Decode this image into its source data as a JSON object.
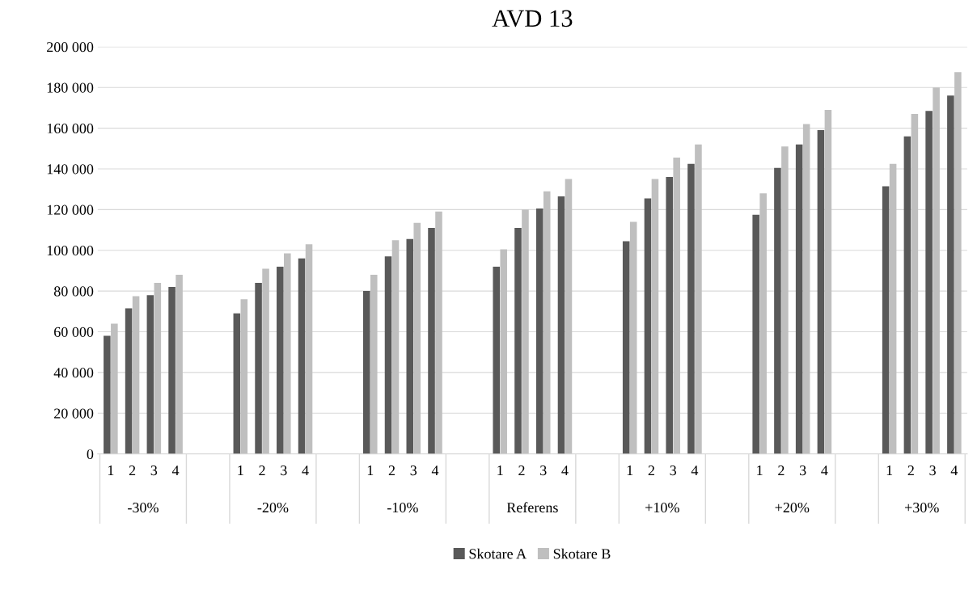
{
  "chart_data": {
    "type": "bar",
    "title": "AVD 13",
    "categories": [
      "1",
      "2",
      "3",
      "4",
      null,
      null,
      "1",
      "2",
      "3",
      "4",
      null,
      null,
      "1",
      "2",
      "3",
      "4",
      null,
      null,
      "1",
      "2",
      "3",
      "4",
      null,
      null,
      "1",
      "2",
      "3",
      "4",
      null,
      null,
      "1",
      "2",
      "3",
      "4",
      null,
      null,
      "1",
      "2",
      "3",
      "4"
    ],
    "series": [
      {
        "name": "Skotare A",
        "color": "#595959",
        "values": [
          58000,
          71500,
          78000,
          82000,
          null,
          null,
          69000,
          84000,
          92000,
          96000,
          null,
          null,
          80000,
          97000,
          105500,
          111000,
          null,
          null,
          92000,
          111000,
          120500,
          126500,
          null,
          null,
          104500,
          125500,
          136000,
          142500,
          null,
          null,
          117500,
          140500,
          152000,
          159000,
          null,
          null,
          131500,
          156000,
          168500,
          176000
        ]
      },
      {
        "name": "Skotare B",
        "color": "#bfbfbf",
        "values": [
          64000,
          77500,
          84000,
          88000,
          null,
          null,
          76000,
          91000,
          98500,
          103000,
          null,
          null,
          88000,
          105000,
          113500,
          119000,
          null,
          null,
          100500,
          120000,
          129000,
          135000,
          null,
          null,
          114000,
          135000,
          145500,
          152000,
          null,
          null,
          128000,
          151000,
          162000,
          169000,
          null,
          null,
          142500,
          167000,
          180000,
          187500
        ]
      }
    ],
    "annotations": [
      "-30%",
      "-20%",
      "-10%",
      "Referens",
      "+10%",
      "+20%",
      "+30%"
    ],
    "ylim": [
      0,
      200000
    ],
    "yticks": [
      0,
      {
        "value": 20000,
        "label": "20 000"
      },
      {
        "value": 40000,
        "label": "40 000"
      },
      {
        "value": 60000,
        "label": "60 000"
      },
      {
        "value": 80000,
        "label": "80 000"
      },
      {
        "value": 100000,
        "label": "100 000"
      },
      {
        "value": 120000,
        "label": "120 000"
      },
      {
        "value": 140000,
        "label": "140 000"
      },
      {
        "value": 160000,
        "label": "160 000"
      },
      {
        "value": 180000,
        "label": "180 000"
      },
      {
        "value": 200000,
        "label": "200 000"
      }
    ],
    "grid": "y",
    "legend": "bottom"
  }
}
